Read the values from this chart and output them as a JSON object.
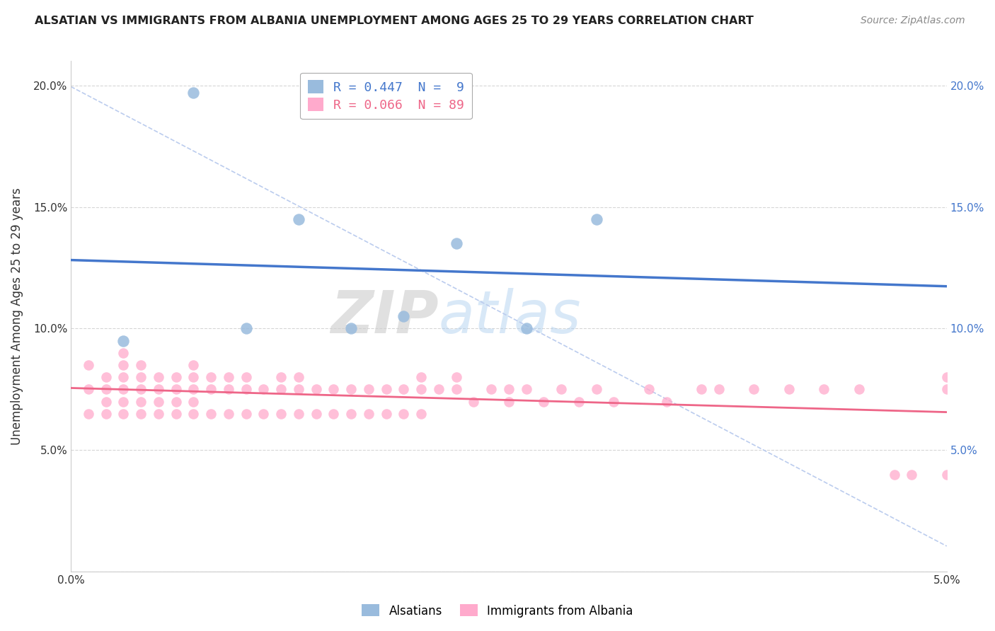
{
  "title": "ALSATIAN VS IMMIGRANTS FROM ALBANIA UNEMPLOYMENT AMONG AGES 25 TO 29 YEARS CORRELATION CHART",
  "source": "Source: ZipAtlas.com",
  "ylabel": "Unemployment Among Ages 25 to 29 years",
  "r_alsatian": 0.447,
  "n_alsatian": 9,
  "r_albania": 0.066,
  "n_albania": 89,
  "xlim": [
    0.0,
    0.05
  ],
  "ylim": [
    0.0,
    0.21
  ],
  "color_alsatian": "#99BBDD",
  "color_albania": "#FFAACC",
  "trendline_alsatian": "#4477CC",
  "trendline_albania": "#EE6688",
  "diagonal_color": "#BBCCEE",
  "background": "#FFFFFF",
  "alsatian_x": [
    0.003,
    0.007,
    0.01,
    0.013,
    0.016,
    0.019,
    0.022,
    0.026,
    0.03
  ],
  "alsatian_y": [
    0.095,
    0.197,
    0.1,
    0.145,
    0.1,
    0.105,
    0.135,
    0.1,
    0.145
  ],
  "albania_x": [
    0.001,
    0.001,
    0.001,
    0.002,
    0.002,
    0.002,
    0.002,
    0.003,
    0.003,
    0.003,
    0.003,
    0.003,
    0.003,
    0.004,
    0.004,
    0.004,
    0.004,
    0.004,
    0.005,
    0.005,
    0.005,
    0.005,
    0.006,
    0.006,
    0.006,
    0.006,
    0.007,
    0.007,
    0.007,
    0.007,
    0.007,
    0.008,
    0.008,
    0.008,
    0.009,
    0.009,
    0.009,
    0.01,
    0.01,
    0.01,
    0.011,
    0.011,
    0.012,
    0.012,
    0.012,
    0.013,
    0.013,
    0.013,
    0.014,
    0.014,
    0.015,
    0.015,
    0.016,
    0.016,
    0.017,
    0.017,
    0.018,
    0.018,
    0.019,
    0.019,
    0.02,
    0.02,
    0.02,
    0.021,
    0.022,
    0.022,
    0.023,
    0.024,
    0.025,
    0.025,
    0.026,
    0.027,
    0.028,
    0.029,
    0.03,
    0.031,
    0.033,
    0.034,
    0.036,
    0.037,
    0.039,
    0.041,
    0.043,
    0.045,
    0.047,
    0.048,
    0.05,
    0.05,
    0.05
  ],
  "albania_y": [
    0.085,
    0.075,
    0.065,
    0.08,
    0.075,
    0.07,
    0.065,
    0.09,
    0.085,
    0.08,
    0.075,
    0.07,
    0.065,
    0.085,
    0.08,
    0.075,
    0.07,
    0.065,
    0.08,
    0.075,
    0.07,
    0.065,
    0.08,
    0.075,
    0.07,
    0.065,
    0.085,
    0.08,
    0.075,
    0.07,
    0.065,
    0.08,
    0.075,
    0.065,
    0.08,
    0.075,
    0.065,
    0.08,
    0.075,
    0.065,
    0.075,
    0.065,
    0.08,
    0.075,
    0.065,
    0.08,
    0.075,
    0.065,
    0.075,
    0.065,
    0.075,
    0.065,
    0.075,
    0.065,
    0.075,
    0.065,
    0.075,
    0.065,
    0.075,
    0.065,
    0.08,
    0.075,
    0.065,
    0.075,
    0.08,
    0.075,
    0.07,
    0.075,
    0.075,
    0.07,
    0.075,
    0.07,
    0.075,
    0.07,
    0.075,
    0.07,
    0.075,
    0.07,
    0.075,
    0.075,
    0.075,
    0.075,
    0.075,
    0.075,
    0.04,
    0.04,
    0.08,
    0.075,
    0.04
  ],
  "watermark_zip": "ZIP",
  "watermark_atlas": "atlas",
  "legend_alsatian": "Alsatians",
  "legend_albania": "Immigrants from Albania"
}
